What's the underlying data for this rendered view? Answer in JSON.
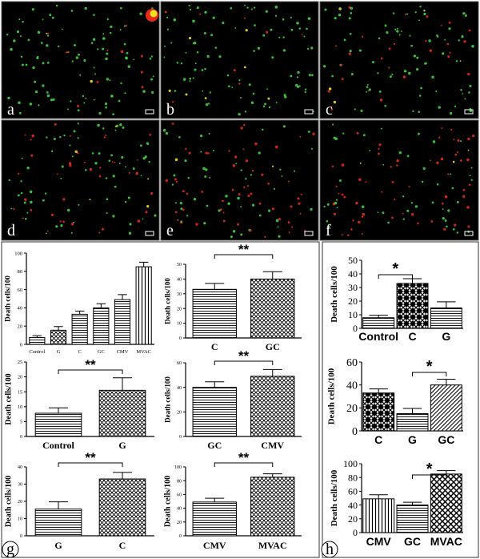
{
  "figure": {
    "micrographs": [
      {
        "label": "a"
      },
      {
        "label": "b"
      },
      {
        "label": "c"
      },
      {
        "label": "d"
      },
      {
        "label": "e"
      },
      {
        "label": "f"
      }
    ],
    "panel_g_label": "g",
    "panel_h_label": "h",
    "colors": {
      "fluor_green": "#3fd43f",
      "fluor_red": "#e82a1a",
      "fluor_yellow": "#f0e020",
      "micro_bg": "#000000",
      "frame": "#555555"
    }
  },
  "chart_data": [
    {
      "id": "g1",
      "type": "bar",
      "ylabel": "Death cells/100",
      "categories": [
        "Control",
        "G",
        "C",
        "GC",
        "CMV",
        "MVAC"
      ],
      "values": [
        7.5,
        15.5,
        33,
        40,
        49,
        85
      ],
      "errors": [
        2,
        4,
        3.5,
        4.5,
        5.5,
        5
      ],
      "yticks": [
        0,
        20,
        40,
        60,
        80,
        100
      ],
      "ylim": [
        0,
        100
      ],
      "patterns": [
        "hlines",
        "cross",
        "hlines",
        "hlines",
        "hlines",
        "vlines"
      ],
      "significance": [],
      "tick_font": 6.5,
      "cat_font": 6.5,
      "cat_bold": false
    },
    {
      "id": "g2",
      "type": "bar",
      "ylabel": "Death cells/100",
      "categories": [
        "C",
        "GC"
      ],
      "values": [
        33,
        40
      ],
      "errors": [
        4,
        5
      ],
      "yticks": [
        0,
        10,
        20,
        30,
        40,
        50
      ],
      "ylim": [
        0,
        50
      ],
      "patterns": [
        "hlines",
        "cross"
      ],
      "significance": [
        {
          "from": 0,
          "to": 1,
          "label": "**"
        }
      ],
      "tick_font": 6,
      "cat_font": 12,
      "cat_bold": true
    },
    {
      "id": "g3",
      "type": "bar",
      "ylabel": "Death cells/100",
      "categories": [
        "Control",
        "G"
      ],
      "values": [
        7.8,
        15.5
      ],
      "errors": [
        1.8,
        4.2
      ],
      "yticks": [
        0,
        5,
        10,
        15,
        20,
        25
      ],
      "ylim": [
        0,
        25
      ],
      "patterns": [
        "hlines",
        "cross"
      ],
      "significance": [
        {
          "from": 0,
          "to": 1,
          "label": "**"
        }
      ],
      "tick_font": 6,
      "cat_font": 12,
      "cat_bold": true
    },
    {
      "id": "g4",
      "type": "bar",
      "ylabel": "Death cells/100",
      "categories": [
        "GC",
        "CMV"
      ],
      "values": [
        40,
        49
      ],
      "errors": [
        4.5,
        5.5
      ],
      "yticks": [
        0,
        20,
        40,
        60
      ],
      "ylim": [
        0,
        60
      ],
      "patterns": [
        "hlines",
        "cross"
      ],
      "significance": [
        {
          "from": 0,
          "to": 1,
          "label": "**"
        }
      ],
      "tick_font": 6,
      "cat_font": 12,
      "cat_bold": true
    },
    {
      "id": "g5",
      "type": "bar",
      "ylabel": "Death cells/100",
      "categories": [
        "G",
        "C"
      ],
      "values": [
        15.5,
        33
      ],
      "errors": [
        4.2,
        3.8
      ],
      "yticks": [
        0,
        10,
        20,
        30,
        40
      ],
      "ylim": [
        0,
        40
      ],
      "patterns": [
        "hlines",
        "cross"
      ],
      "significance": [
        {
          "from": 0,
          "to": 1,
          "label": "**"
        }
      ],
      "tick_font": 6,
      "cat_font": 12,
      "cat_bold": true
    },
    {
      "id": "g6",
      "type": "bar",
      "ylabel": "Death cells/100",
      "categories": [
        "CMV",
        "MVAC"
      ],
      "values": [
        49,
        85
      ],
      "errors": [
        5.5,
        5
      ],
      "yticks": [
        0,
        20,
        40,
        60,
        80,
        100
      ],
      "ylim": [
        0,
        100
      ],
      "patterns": [
        "hlines",
        "cross"
      ],
      "significance": [
        {
          "from": 0,
          "to": 1,
          "label": "**"
        }
      ],
      "tick_font": 6,
      "cat_font": 12,
      "cat_bold": true
    },
    {
      "id": "h1",
      "type": "bar",
      "ylabel": "Death cells/100",
      "categories": [
        "Control",
        "C",
        "G"
      ],
      "values": [
        7.8,
        33,
        15
      ],
      "errors": [
        1.8,
        3.5,
        4.5
      ],
      "yticks": [
        0,
        10,
        20,
        30,
        40,
        50
      ],
      "ylim": [
        0,
        50
      ],
      "patterns": [
        "hlines",
        "checker",
        "hlines"
      ],
      "significance": [
        {
          "from": 0,
          "to": 1,
          "label": "*"
        }
      ],
      "tick_font": 12,
      "cat_font": 14,
      "cat_bold": true
    },
    {
      "id": "h2",
      "type": "bar",
      "ylabel": "Death cells/100",
      "categories": [
        "C",
        "G",
        "GC"
      ],
      "values": [
        33,
        15,
        40
      ],
      "errors": [
        3.5,
        4.5,
        5
      ],
      "yticks": [
        0,
        20,
        40,
        60
      ],
      "ylim": [
        0,
        60
      ],
      "patterns": [
        "checker",
        "hlines",
        "diag"
      ],
      "significance": [
        {
          "from": 1,
          "to": 2,
          "label": "*"
        }
      ],
      "tick_font": 14,
      "cat_font": 14,
      "cat_bold": true
    },
    {
      "id": "h3",
      "type": "bar",
      "ylabel": "Death cells/100",
      "categories": [
        "CMV",
        "GC",
        "MVAC"
      ],
      "values": [
        49,
        40,
        85
      ],
      "errors": [
        6,
        4,
        5
      ],
      "yticks": [
        0,
        20,
        40,
        60,
        80,
        100
      ],
      "ylim": [
        0,
        100
      ],
      "patterns": [
        "vlines",
        "hlines",
        "diagcross"
      ],
      "significance": [
        {
          "from": 1,
          "to": 2,
          "label": "*"
        }
      ],
      "tick_font": 12,
      "cat_font": 14,
      "cat_bold": true
    }
  ]
}
